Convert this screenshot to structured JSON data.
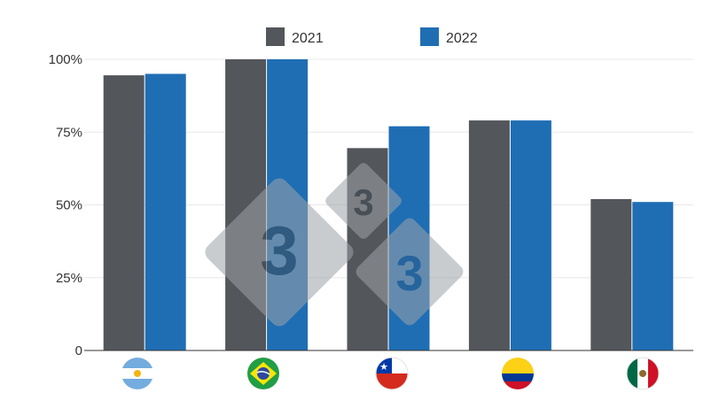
{
  "chart_data": {
    "type": "bar",
    "categories": [
      "Argentina",
      "Brazil",
      "Chile",
      "Colombia",
      "Mexico"
    ],
    "category_icons": [
      "flag-argentina-icon",
      "flag-brazil-icon",
      "flag-chile-icon",
      "flag-colombia-icon",
      "flag-mexico-icon"
    ],
    "series": [
      {
        "name": "2021",
        "color": "#53565a",
        "values": [
          94.5,
          100,
          69.5,
          79,
          52
        ]
      },
      {
        "name": "2022",
        "color": "#1f6eb4",
        "values": [
          95,
          100,
          77,
          79,
          51
        ]
      }
    ],
    "ylim": [
      0,
      100
    ],
    "y_ticks": [
      "0",
      "25%",
      "50%",
      "75%",
      "100%"
    ],
    "y_tick_values": [
      0,
      25,
      50,
      75,
      100
    ],
    "grid": true,
    "legend_position": "top-center",
    "watermark": "333"
  }
}
